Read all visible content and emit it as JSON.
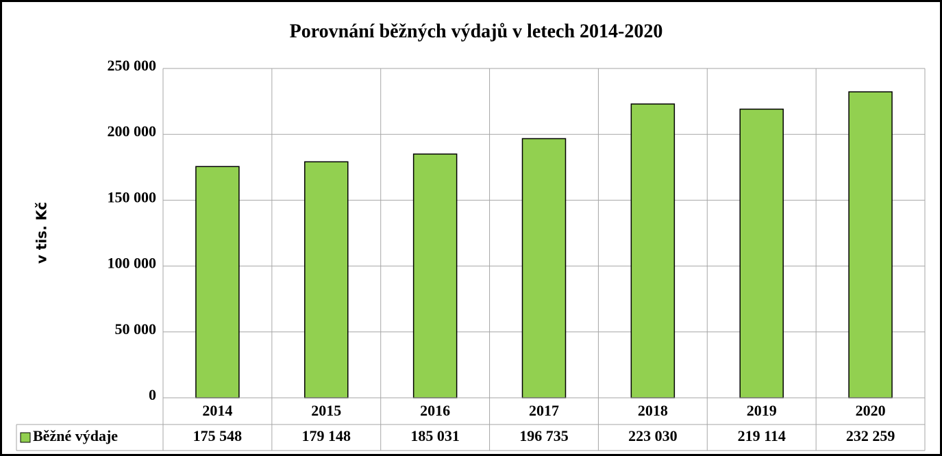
{
  "chart_data": {
    "type": "bar",
    "title": "Porovnání běžných výdajů v letech 2014-2020",
    "y_label": "v tis. Kč",
    "categories": [
      "2014",
      "2015",
      "2016",
      "2017",
      "2018",
      "2019",
      "2020"
    ],
    "series": [
      {
        "name": "Běžné výdaje",
        "color": "#92d050",
        "values": [
          175548,
          179148,
          185031,
          196735,
          223030,
          219114,
          232259
        ],
        "value_labels": [
          "175 548",
          "179 148",
          "185 031",
          "196 735",
          "223 030",
          "219 114",
          "232 259"
        ]
      }
    ],
    "ylim": [
      0,
      250000
    ],
    "yticks": [
      0,
      {
        "value": 50000,
        "label": "50 000"
      },
      {
        "value": 100000,
        "label": "100 000"
      },
      {
        "value": 150000,
        "label": "150 000"
      },
      {
        "value": 200000,
        "label": "200 000"
      },
      {
        "value": 250000,
        "label": "250 000"
      }
    ],
    "grid": true,
    "data_table": true
  }
}
